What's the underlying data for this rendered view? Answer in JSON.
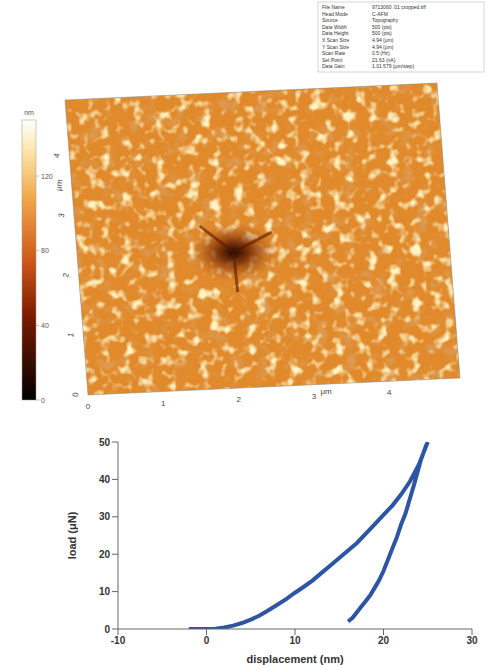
{
  "chart_data": [
    {
      "type": "surface",
      "x_label": "μm",
      "y_label": "μm",
      "xlim": [
        0,
        4.94
      ],
      "xticks": [
        0,
        1,
        2,
        3,
        4
      ],
      "ylim": [
        0,
        4.94
      ],
      "yticks": [
        0,
        1,
        2,
        3,
        4
      ],
      "colorbar_label": "nm",
      "colorbar_range": [
        0,
        150
      ],
      "colorbar_ticks": [
        0,
        40,
        80,
        120
      ],
      "info": [
        [
          "File Name",
          "9713060 .01 cropped.tiff"
        ],
        [
          "Head Mode",
          "C-AFM"
        ],
        [
          "Source",
          "Topography"
        ],
        [
          "Data Width",
          "500 (pts)"
        ],
        [
          "Data Height",
          "500 (pts)"
        ],
        [
          "X Scan Size",
          "4.94 (μm)"
        ],
        [
          "Y Scan Size",
          "4.94 (μm)"
        ],
        [
          "Scan Rate",
          "0.5 (Hz)"
        ],
        [
          "Set Point",
          "21.63 (nA)"
        ],
        [
          "Data Gain",
          "1.01 579 (μm/step)"
        ]
      ]
    },
    {
      "type": "line",
      "x_label": "displacement (nm)",
      "y_label": "load (μN)",
      "xlim": [
        -10,
        30
      ],
      "xticks": [
        -10,
        0,
        10,
        20,
        30
      ],
      "ylim": [
        0,
        50
      ],
      "yticks": [
        0,
        10,
        20,
        30,
        40,
        50
      ],
      "grid": false,
      "color": "#2e55a4",
      "marker": "none",
      "x": [
        -2,
        -1,
        0,
        1,
        2,
        3,
        4,
        5,
        6,
        7,
        8,
        9,
        10,
        11,
        12,
        13,
        14,
        15,
        16,
        17,
        18,
        19,
        20,
        21,
        22,
        23,
        24,
        24.5,
        25,
        24.8,
        24.2,
        23.5,
        23,
        22.5,
        22,
        21.5,
        21,
        20.5,
        20,
        19.5,
        19,
        18.5,
        18,
        17.5,
        17,
        16.5,
        16
      ],
      "values": [
        0,
        0,
        0,
        0.1,
        0.4,
        0.9,
        1.6,
        2.5,
        3.6,
        5,
        6.5,
        8,
        9.7,
        11.3,
        13,
        15,
        17,
        19,
        21,
        23,
        25.5,
        28,
        30.5,
        33,
        36,
        39.5,
        44,
        47,
        50,
        49,
        45,
        39,
        35,
        31,
        28,
        24.5,
        21.5,
        18.5,
        15.5,
        13,
        11,
        9,
        7.5,
        6,
        4.5,
        3,
        2
      ]
    }
  ]
}
